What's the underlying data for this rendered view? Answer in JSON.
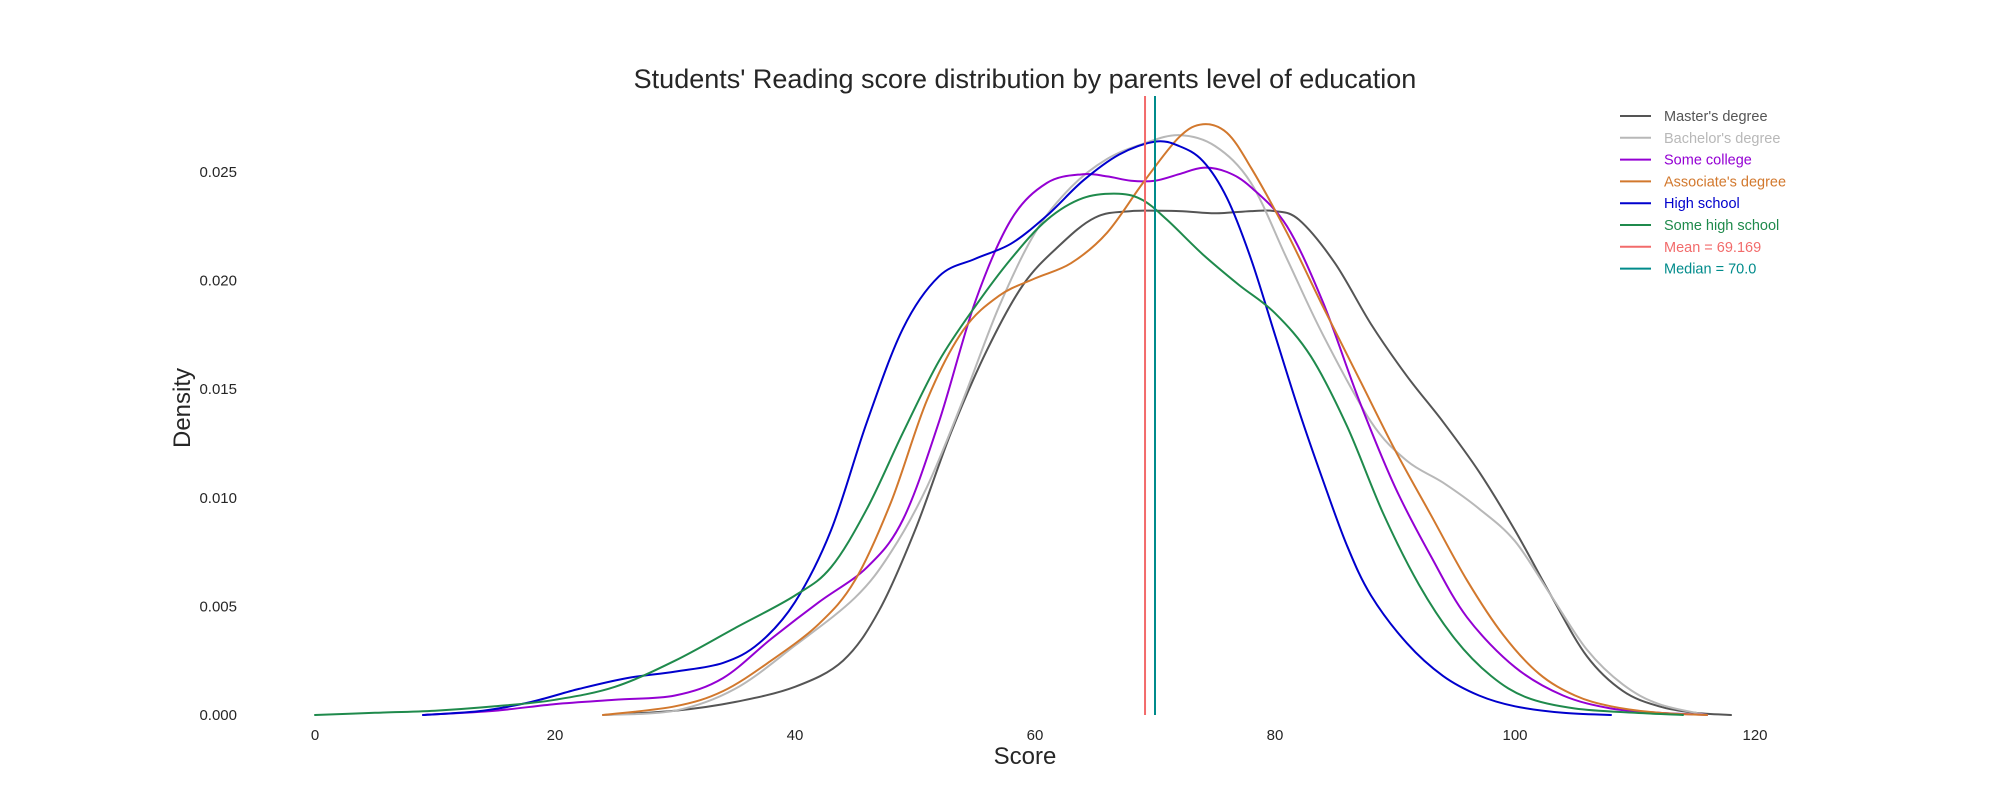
{
  "chart_data": {
    "type": "line",
    "title": "Students' Reading score distribution by parents level of education",
    "xlabel": "Score",
    "ylabel": "Density",
    "xlim": [
      0,
      120
    ],
    "ylim": [
      0,
      0.0285
    ],
    "xticks": [
      "0",
      "20",
      "40",
      "60",
      "80",
      "100",
      "120"
    ],
    "yticks": [
      "0.000",
      "0.005",
      "0.010",
      "0.015",
      "0.020",
      "0.025"
    ],
    "grid": false,
    "legend_position": "top-right",
    "series": [
      {
        "name": "Master's degree",
        "color": "#555555",
        "points": [
          [
            24,
            0
          ],
          [
            30,
            0.0002
          ],
          [
            35,
            0.0006
          ],
          [
            40,
            0.0013
          ],
          [
            44,
            0.0025
          ],
          [
            47,
            0.0048
          ],
          [
            50,
            0.0085
          ],
          [
            53,
            0.013
          ],
          [
            56,
            0.0168
          ],
          [
            59,
            0.0198
          ],
          [
            62,
            0.0216
          ],
          [
            65,
            0.0229
          ],
          [
            68,
            0.0232
          ],
          [
            72,
            0.0232
          ],
          [
            75,
            0.0231
          ],
          [
            78,
            0.0232
          ],
          [
            80,
            0.0232
          ],
          [
            82,
            0.0228
          ],
          [
            85,
            0.0208
          ],
          [
            88,
            0.018
          ],
          [
            91,
            0.0156
          ],
          [
            94,
            0.0135
          ],
          [
            97,
            0.0112
          ],
          [
            100,
            0.0085
          ],
          [
            103,
            0.0055
          ],
          [
            106,
            0.0027
          ],
          [
            109,
            0.0011
          ],
          [
            112,
            0.0004
          ],
          [
            115,
            0.0001
          ],
          [
            118,
            0
          ]
        ]
      },
      {
        "name": "Bachelor's degree",
        "color": "#b8b8b8",
        "points": [
          [
            24,
            0
          ],
          [
            30,
            0.0002
          ],
          [
            35,
            0.0012
          ],
          [
            40,
            0.0032
          ],
          [
            45,
            0.0054
          ],
          [
            48,
            0.0075
          ],
          [
            51,
            0.0105
          ],
          [
            54,
            0.0145
          ],
          [
            57,
            0.0188
          ],
          [
            60,
            0.0222
          ],
          [
            63,
            0.0243
          ],
          [
            66,
            0.0256
          ],
          [
            69,
            0.0263
          ],
          [
            72,
            0.0267
          ],
          [
            75,
            0.0262
          ],
          [
            78,
            0.0245
          ],
          [
            81,
            0.021
          ],
          [
            84,
            0.0175
          ],
          [
            88,
            0.0135
          ],
          [
            91,
            0.0117
          ],
          [
            94,
            0.0107
          ],
          [
            97,
            0.0095
          ],
          [
            100,
            0.008
          ],
          [
            103,
            0.0055
          ],
          [
            106,
            0.003
          ],
          [
            109,
            0.0014
          ],
          [
            112,
            0.0005
          ],
          [
            116,
            0
          ]
        ]
      },
      {
        "name": "Some college",
        "color": "#9400d3",
        "points": [
          [
            9,
            0
          ],
          [
            15,
            0.0002
          ],
          [
            20,
            0.0005
          ],
          [
            25,
            0.0007
          ],
          [
            30,
            0.0009
          ],
          [
            34,
            0.0017
          ],
          [
            38,
            0.0035
          ],
          [
            42,
            0.0052
          ],
          [
            46,
            0.0068
          ],
          [
            49,
            0.009
          ],
          [
            52,
            0.0135
          ],
          [
            55,
            0.019
          ],
          [
            58,
            0.0228
          ],
          [
            61,
            0.0245
          ],
          [
            64,
            0.0249
          ],
          [
            66,
            0.0248
          ],
          [
            68,
            0.0246
          ],
          [
            70,
            0.0246
          ],
          [
            72,
            0.0249
          ],
          [
            74,
            0.0252
          ],
          [
            76,
            0.025
          ],
          [
            78,
            0.0243
          ],
          [
            81,
            0.0225
          ],
          [
            84,
            0.019
          ],
          [
            87,
            0.0145
          ],
          [
            90,
            0.0105
          ],
          [
            93,
            0.0073
          ],
          [
            96,
            0.0045
          ],
          [
            100,
            0.0022
          ],
          [
            104,
            0.0009
          ],
          [
            108,
            0.0003
          ],
          [
            112,
            0.0001
          ],
          [
            116,
            0
          ]
        ]
      },
      {
        "name": "Associate's degree",
        "color": "#d2782d",
        "points": [
          [
            24,
            0
          ],
          [
            30,
            0.0004
          ],
          [
            34,
            0.0011
          ],
          [
            38,
            0.0025
          ],
          [
            42,
            0.0042
          ],
          [
            45,
            0.0062
          ],
          [
            48,
            0.0098
          ],
          [
            51,
            0.0145
          ],
          [
            54,
            0.0177
          ],
          [
            57,
            0.0193
          ],
          [
            60,
            0.0201
          ],
          [
            63,
            0.0208
          ],
          [
            66,
            0.0222
          ],
          [
            69,
            0.0245
          ],
          [
            72,
            0.0266
          ],
          [
            74,
            0.0272
          ],
          [
            76,
            0.0268
          ],
          [
            78,
            0.0252
          ],
          [
            81,
            0.0222
          ],
          [
            84,
            0.0188
          ],
          [
            87,
            0.0155
          ],
          [
            90,
            0.0122
          ],
          [
            93,
            0.0092
          ],
          [
            96,
            0.0062
          ],
          [
            99,
            0.0037
          ],
          [
            102,
            0.0019
          ],
          [
            105,
            0.0009
          ],
          [
            108,
            0.0004
          ],
          [
            112,
            0.0001
          ],
          [
            116,
            0
          ]
        ]
      },
      {
        "name": "High school",
        "color": "#0000cd",
        "points": [
          [
            9,
            0
          ],
          [
            14,
            0.0002
          ],
          [
            18,
            0.0006
          ],
          [
            22,
            0.0012
          ],
          [
            26,
            0.0017
          ],
          [
            30,
            0.002
          ],
          [
            34,
            0.0024
          ],
          [
            37,
            0.0033
          ],
          [
            40,
            0.0052
          ],
          [
            43,
            0.0085
          ],
          [
            46,
            0.0135
          ],
          [
            49,
            0.0178
          ],
          [
            52,
            0.0202
          ],
          [
            55,
            0.021
          ],
          [
            58,
            0.0217
          ],
          [
            61,
            0.023
          ],
          [
            64,
            0.0246
          ],
          [
            67,
            0.0258
          ],
          [
            70,
            0.0264
          ],
          [
            72,
            0.0262
          ],
          [
            74,
            0.0255
          ],
          [
            76,
            0.0238
          ],
          [
            78,
            0.021
          ],
          [
            80,
            0.0175
          ],
          [
            82,
            0.014
          ],
          [
            84,
            0.0108
          ],
          [
            86,
            0.0078
          ],
          [
            88,
            0.0055
          ],
          [
            91,
            0.0033
          ],
          [
            94,
            0.0018
          ],
          [
            97,
            0.0009
          ],
          [
            100,
            0.0004
          ],
          [
            104,
            0.0001
          ],
          [
            108,
            0
          ]
        ]
      },
      {
        "name": "Some high school",
        "color": "#1f8a4c",
        "points": [
          [
            0,
            0
          ],
          [
            5,
            0.0001
          ],
          [
            10,
            0.0002
          ],
          [
            15,
            0.0004
          ],
          [
            20,
            0.0007
          ],
          [
            25,
            0.0013
          ],
          [
            30,
            0.0025
          ],
          [
            35,
            0.004
          ],
          [
            40,
            0.0055
          ],
          [
            43,
            0.0068
          ],
          [
            46,
            0.0095
          ],
          [
            49,
            0.013
          ],
          [
            52,
            0.0163
          ],
          [
            55,
            0.0188
          ],
          [
            58,
            0.021
          ],
          [
            61,
            0.0228
          ],
          [
            64,
            0.0238
          ],
          [
            67,
            0.024
          ],
          [
            69,
            0.0237
          ],
          [
            71,
            0.0228
          ],
          [
            74,
            0.0212
          ],
          [
            77,
            0.0198
          ],
          [
            80,
            0.0185
          ],
          [
            83,
            0.0165
          ],
          [
            86,
            0.0133
          ],
          [
            89,
            0.0093
          ],
          [
            92,
            0.006
          ],
          [
            95,
            0.0035
          ],
          [
            98,
            0.0018
          ],
          [
            101,
            0.0008
          ],
          [
            105,
            0.0003
          ],
          [
            110,
            0.0001
          ],
          [
            114,
            0
          ]
        ]
      }
    ],
    "vlines": [
      {
        "name": "Mean = 69.169",
        "value": 69.169,
        "color": "#f26b6b"
      },
      {
        "name": "Median = 70.0",
        "value": 70.0,
        "color": "#008b8b"
      }
    ]
  }
}
